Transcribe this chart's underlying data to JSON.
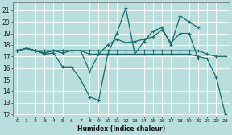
{
  "xlabel": "Humidex (Indice chaleur)",
  "bg_color": "#b8dede",
  "grid_color": "#ffffff",
  "line_color": "#1a6b6b",
  "xlim": [
    -0.5,
    23.5
  ],
  "ylim": [
    11.8,
    21.7
  ],
  "yticks": [
    12,
    13,
    14,
    15,
    16,
    17,
    18,
    19,
    20,
    21
  ],
  "xticks": [
    0,
    1,
    2,
    3,
    4,
    5,
    6,
    7,
    8,
    9,
    10,
    11,
    12,
    13,
    14,
    15,
    16,
    17,
    18,
    19,
    20,
    21,
    22,
    23
  ],
  "series": [
    [
      17.5,
      17.7,
      17.5,
      17.5,
      17.5,
      17.5,
      17.5,
      17.5,
      17.5,
      17.5,
      17.5,
      17.5,
      17.5,
      17.5,
      17.5,
      17.5,
      17.5,
      17.5,
      17.5,
      17.5,
      17.5,
      17.2,
      17.0,
      17.0
    ],
    [
      17.5,
      17.7,
      17.5,
      17.2,
      17.3,
      16.1,
      16.1,
      15.0,
      13.5,
      13.2,
      17.2,
      19.0,
      21.2,
      17.2,
      18.3,
      19.2,
      19.5,
      18.0,
      20.5,
      20.0,
      19.5,
      null,
      null,
      null
    ],
    [
      17.5,
      17.7,
      17.5,
      17.3,
      17.5,
      17.3,
      17.5,
      17.5,
      15.7,
      17.2,
      18.0,
      18.5,
      18.2,
      18.3,
      18.5,
      18.7,
      19.3,
      18.2,
      19.0,
      19.0,
      16.8,
      null,
      null,
      null
    ],
    [
      17.5,
      17.7,
      17.5,
      17.3,
      17.5,
      17.5,
      17.5,
      17.5,
      17.2,
      17.2,
      17.2,
      17.2,
      17.2,
      17.2,
      17.2,
      17.2,
      17.2,
      17.2,
      17.2,
      17.2,
      17.0,
      16.8,
      15.2,
      12.0
    ]
  ]
}
